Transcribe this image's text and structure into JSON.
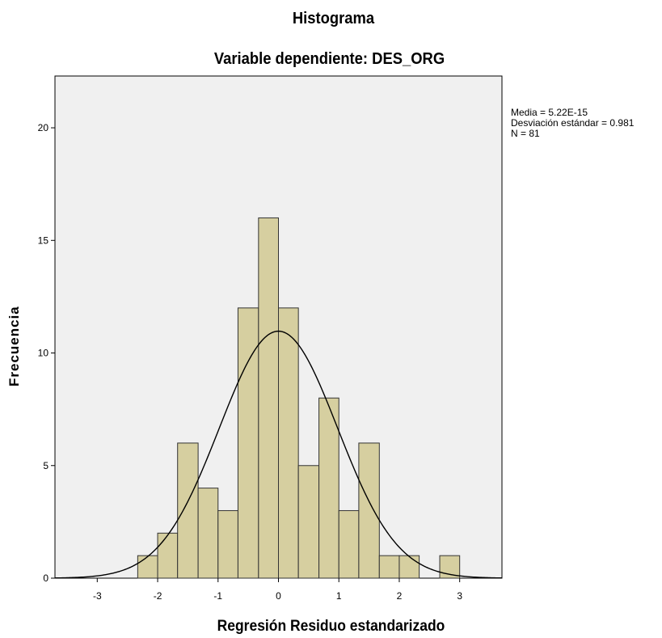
{
  "chart_data": {
    "type": "bar",
    "title": "Histograma",
    "subtitle": "Variable dependiente: DES_ORG",
    "xlabel": "Regresión Residuo estandarizado",
    "ylabel": "Frecuencia",
    "xlim": [
      -3.7,
      3.7
    ],
    "ylim": [
      0,
      22.3
    ],
    "xticks": [
      -3,
      -2,
      -1,
      0,
      1,
      2,
      3
    ],
    "yticks": [
      0,
      5,
      10,
      15,
      20
    ],
    "bin_width": 0.333,
    "bins": [
      {
        "x0": -2.33,
        "x1": -2.0,
        "count": 1
      },
      {
        "x0": -2.0,
        "x1": -1.67,
        "count": 2
      },
      {
        "x0": -1.67,
        "x1": -1.33,
        "count": 6
      },
      {
        "x0": -1.33,
        "x1": -1.0,
        "count": 4
      },
      {
        "x0": -1.0,
        "x1": -0.67,
        "count": 3
      },
      {
        "x0": -0.67,
        "x1": -0.33,
        "count": 12
      },
      {
        "x0": -0.33,
        "x1": 0.0,
        "count": 16
      },
      {
        "x0": 0.0,
        "x1": 0.33,
        "count": 12
      },
      {
        "x0": 0.33,
        "x1": 0.67,
        "count": 5
      },
      {
        "x0": 0.67,
        "x1": 1.0,
        "count": 8
      },
      {
        "x0": 1.0,
        "x1": 1.33,
        "count": 3
      },
      {
        "x0": 1.33,
        "x1": 1.67,
        "count": 6
      },
      {
        "x0": 1.67,
        "x1": 2.0,
        "count": 1
      },
      {
        "x0": 2.0,
        "x1": 2.33,
        "count": 1
      },
      {
        "x0": 2.67,
        "x1": 3.0,
        "count": 1
      }
    ],
    "normal_curve": {
      "mean": 0.0,
      "sd": 0.981,
      "n": 81
    },
    "stats_lines": [
      "Media = 5.22E-15",
      "Desviación estándar = 0.981",
      "N = 81"
    ],
    "colors": {
      "bar_fill": "#d6cfa0",
      "bar_stroke": "#333333",
      "plot_bg": "#f0f0f0",
      "curve": "#000000"
    },
    "grid": false
  }
}
